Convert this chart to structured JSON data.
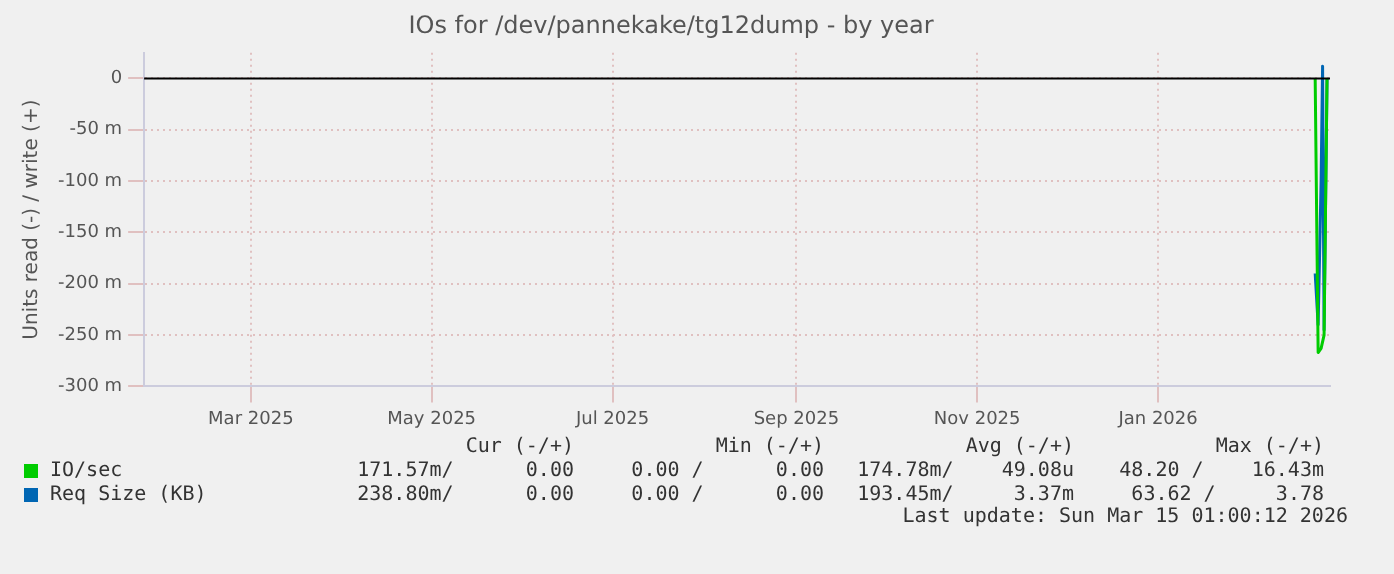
{
  "chart_data": {
    "type": "line",
    "title": "IOs for /dev/pannekake/tg12dump - by year",
    "ylabel": "Units read (-) / write (+)",
    "xlim": [
      "2025-02-08",
      "2026-03-15"
    ],
    "xticks": [
      {
        "value": "2025-03-16",
        "label": "Mar 2025"
      },
      {
        "value": "2025-05-16",
        "label": "May 2025"
      },
      {
        "value": "2025-07-16",
        "label": "Jul 2025"
      },
      {
        "value": "2025-09-16",
        "label": "Sep 2025"
      },
      {
        "value": "2025-11-16",
        "label": "Nov 2025"
      },
      {
        "value": "2026-01-16",
        "label": "Jan 2026"
      }
    ],
    "ylim": [
      -300,
      25
    ],
    "yticks": [
      {
        "value": -300,
        "label": "-300 m"
      },
      {
        "value": -250,
        "label": "-250 m"
      },
      {
        "value": -200,
        "label": "-200 m"
      },
      {
        "value": -150,
        "label": "-150 m"
      },
      {
        "value": -100,
        "label": "-100 m"
      },
      {
        "value": -50,
        "label": "-50 m"
      },
      0
    ],
    "grid": true,
    "legend": "bottom",
    "marker": "none",
    "line_style": "solid",
    "ref_lines": [
      {
        "axis": "y",
        "value": 0,
        "color": "#000000"
      }
    ],
    "series": [
      {
        "name": "IO/sec",
        "color": "#00cc00",
        "x": [
          "2026-03-10",
          "2026-03-11",
          "2026-03-12",
          "2026-03-13",
          "2026-03-14"
        ],
        "values": [
          0,
          -267,
          -263,
          -250,
          0
        ]
      },
      {
        "name": "Req Size (KB)",
        "color": "#0066b3",
        "x": [
          "2026-03-10",
          "2026-03-11",
          "2026-03-12",
          "2026-03-12T12:00",
          "2026-03-13",
          "2026-03-14"
        ],
        "values": [
          -190,
          -240,
          -100,
          12,
          -245,
          0
        ]
      }
    ],
    "annotations": [
      "Cur (-/+)",
      "Min (-/+)",
      "Avg (-/+)",
      "Max (-/+)",
      "171.57m/      0.00",
      "0.00 /      0.00",
      "174.78m/    49.08u",
      "48.20 /    16.43m",
      "238.80m/      0.00",
      "0.00 /      0.00",
      "193.45m/     3.37m",
      "63.62 /     3.78",
      "Last update: Sun Mar 15 01:00:12 2026"
    ]
  }
}
